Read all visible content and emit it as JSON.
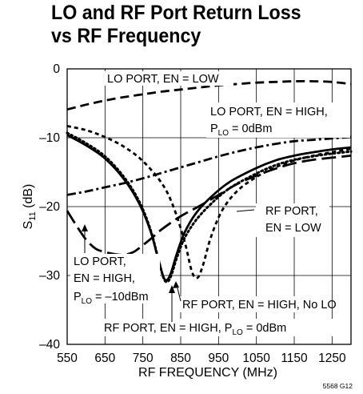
{
  "chart_data": {
    "type": "line",
    "title_line1": "LO and RF Port Return Loss",
    "title_line2": "vs RF Frequency",
    "xlabel": "RF FREQUENCY (MHz)",
    "ylabel_main": "S",
    "ylabel_sub": "11",
    "ylabel_unit": " (dB)",
    "xlim": [
      550,
      1300
    ],
    "ylim": [
      -40,
      0
    ],
    "xticks": [
      550,
      650,
      750,
      850,
      950,
      1050,
      1150,
      1250
    ],
    "yticks": [
      0,
      -10,
      -20,
      -30,
      -40
    ],
    "ytick_labels": [
      "0",
      "–10",
      "–20",
      "–30",
      "–40"
    ],
    "grid": true,
    "figure_code": "5568 G12",
    "series": [
      {
        "id": "lo_low",
        "style": "dash",
        "x": [
          550,
          600,
          650,
          700,
          750,
          800,
          850,
          900,
          950,
          1000,
          1050,
          1100,
          1150,
          1200,
          1250,
          1300
        ],
        "y": [
          -5.9,
          -5.2,
          -4.6,
          -4.1,
          -3.7,
          -3.3,
          -3.0,
          -2.7,
          -2.4,
          -2.2,
          -2.0,
          -1.9,
          -1.8,
          -1.8,
          -1.9,
          -2.2
        ]
      },
      {
        "id": "lo_high_0",
        "style": "dashdot",
        "x": [
          550,
          600,
          650,
          700,
          750,
          800,
          850,
          900,
          950,
          1000,
          1050,
          1100,
          1150,
          1200,
          1250,
          1300
        ],
        "y": [
          -18.3,
          -17.8,
          -17.2,
          -16.6,
          -15.9,
          -15.1,
          -14.3,
          -13.5,
          -12.7,
          -12.0,
          -11.4,
          -10.9,
          -10.5,
          -10.3,
          -10.1,
          -9.9
        ]
      },
      {
        "id": "lo_high_m10",
        "style": "longdash",
        "x": [
          550,
          575,
          600,
          625,
          650,
          675,
          700,
          725,
          750,
          775,
          800,
          850,
          900,
          950,
          1000,
          1050,
          1100,
          1150,
          1200,
          1250,
          1300
        ],
        "y": [
          -20.6,
          -22.8,
          -24.8,
          -26.1,
          -26.6,
          -26.9,
          -27.0,
          -26.6,
          -25.6,
          -24.5,
          -23.3,
          -21.4,
          -19.9,
          -18.3,
          -16.7,
          -15.5,
          -14.5,
          -13.7,
          -13.2,
          -12.9,
          -12.6
        ]
      },
      {
        "id": "rf_high_0",
        "style": "solid",
        "x": [
          550,
          600,
          650,
          700,
          740,
          770,
          790,
          805,
          815,
          825,
          840,
          860,
          890,
          930,
          980,
          1050,
          1100,
          1150,
          1200,
          1250,
          1300
        ],
        "y": [
          -9.6,
          -11.1,
          -13.0,
          -16.0,
          -19.5,
          -23.5,
          -27.5,
          -30.3,
          -30.6,
          -29.5,
          -26.8,
          -23.8,
          -21.0,
          -18.6,
          -16.4,
          -14.4,
          -13.3,
          -12.6,
          -12.1,
          -11.7,
          -11.4
        ]
      },
      {
        "id": "rf_high_nolo",
        "style": "dot",
        "x": [
          550,
          600,
          650,
          700,
          740,
          770,
          790,
          805,
          815,
          825,
          840,
          860,
          890,
          930,
          980,
          1050,
          1100,
          1150,
          1200,
          1250,
          1300
        ],
        "y": [
          -9.3,
          -10.8,
          -12.7,
          -15.7,
          -19.2,
          -23.3,
          -27.4,
          -30.4,
          -30.9,
          -30.0,
          -27.4,
          -24.6,
          -22.0,
          -19.6,
          -17.3,
          -15.2,
          -14.0,
          -13.2,
          -12.7,
          -12.3,
          -12.0
        ]
      },
      {
        "id": "rf_low",
        "style": "shortdash",
        "x": [
          550,
          600,
          650,
          700,
          750,
          800,
          830,
          860,
          880,
          895,
          910,
          930,
          960,
          1000,
          1050,
          1100,
          1150,
          1200,
          1250,
          1300
        ],
        "y": [
          -8.3,
          -8.9,
          -9.9,
          -11.3,
          -13.4,
          -16.6,
          -19.9,
          -25.0,
          -29.5,
          -30.3,
          -28.3,
          -24.4,
          -20.5,
          -17.7,
          -15.7,
          -14.3,
          -13.3,
          -12.6,
          -12.1,
          -11.6
        ]
      }
    ],
    "annotations": {
      "lo_low": "LO PORT, EN = LOW",
      "lo_high_0_line1": "LO PORT, EN = HIGH,",
      "lo_high_0_line2_main": "P",
      "lo_high_0_line2_sub": "LO",
      "lo_high_0_line2_rest": " = 0dBm",
      "rf_low_line1": "RF PORT,",
      "rf_low_line2": "EN = LOW",
      "lo_high_m10_line1": "LO PORT,",
      "lo_high_m10_line2": "EN = HIGH,",
      "lo_high_m10_line3_main": "P",
      "lo_high_m10_line3_sub": "LO",
      "lo_high_m10_line3_rest": " = –10dBm",
      "rf_high_nolo": "RF PORT, EN = HIGH, No LO",
      "rf_high_0_main": "RF PORT, EN = HIGH, P",
      "rf_high_0_sub": "LO",
      "rf_high_0_rest": " = 0dBm"
    }
  }
}
